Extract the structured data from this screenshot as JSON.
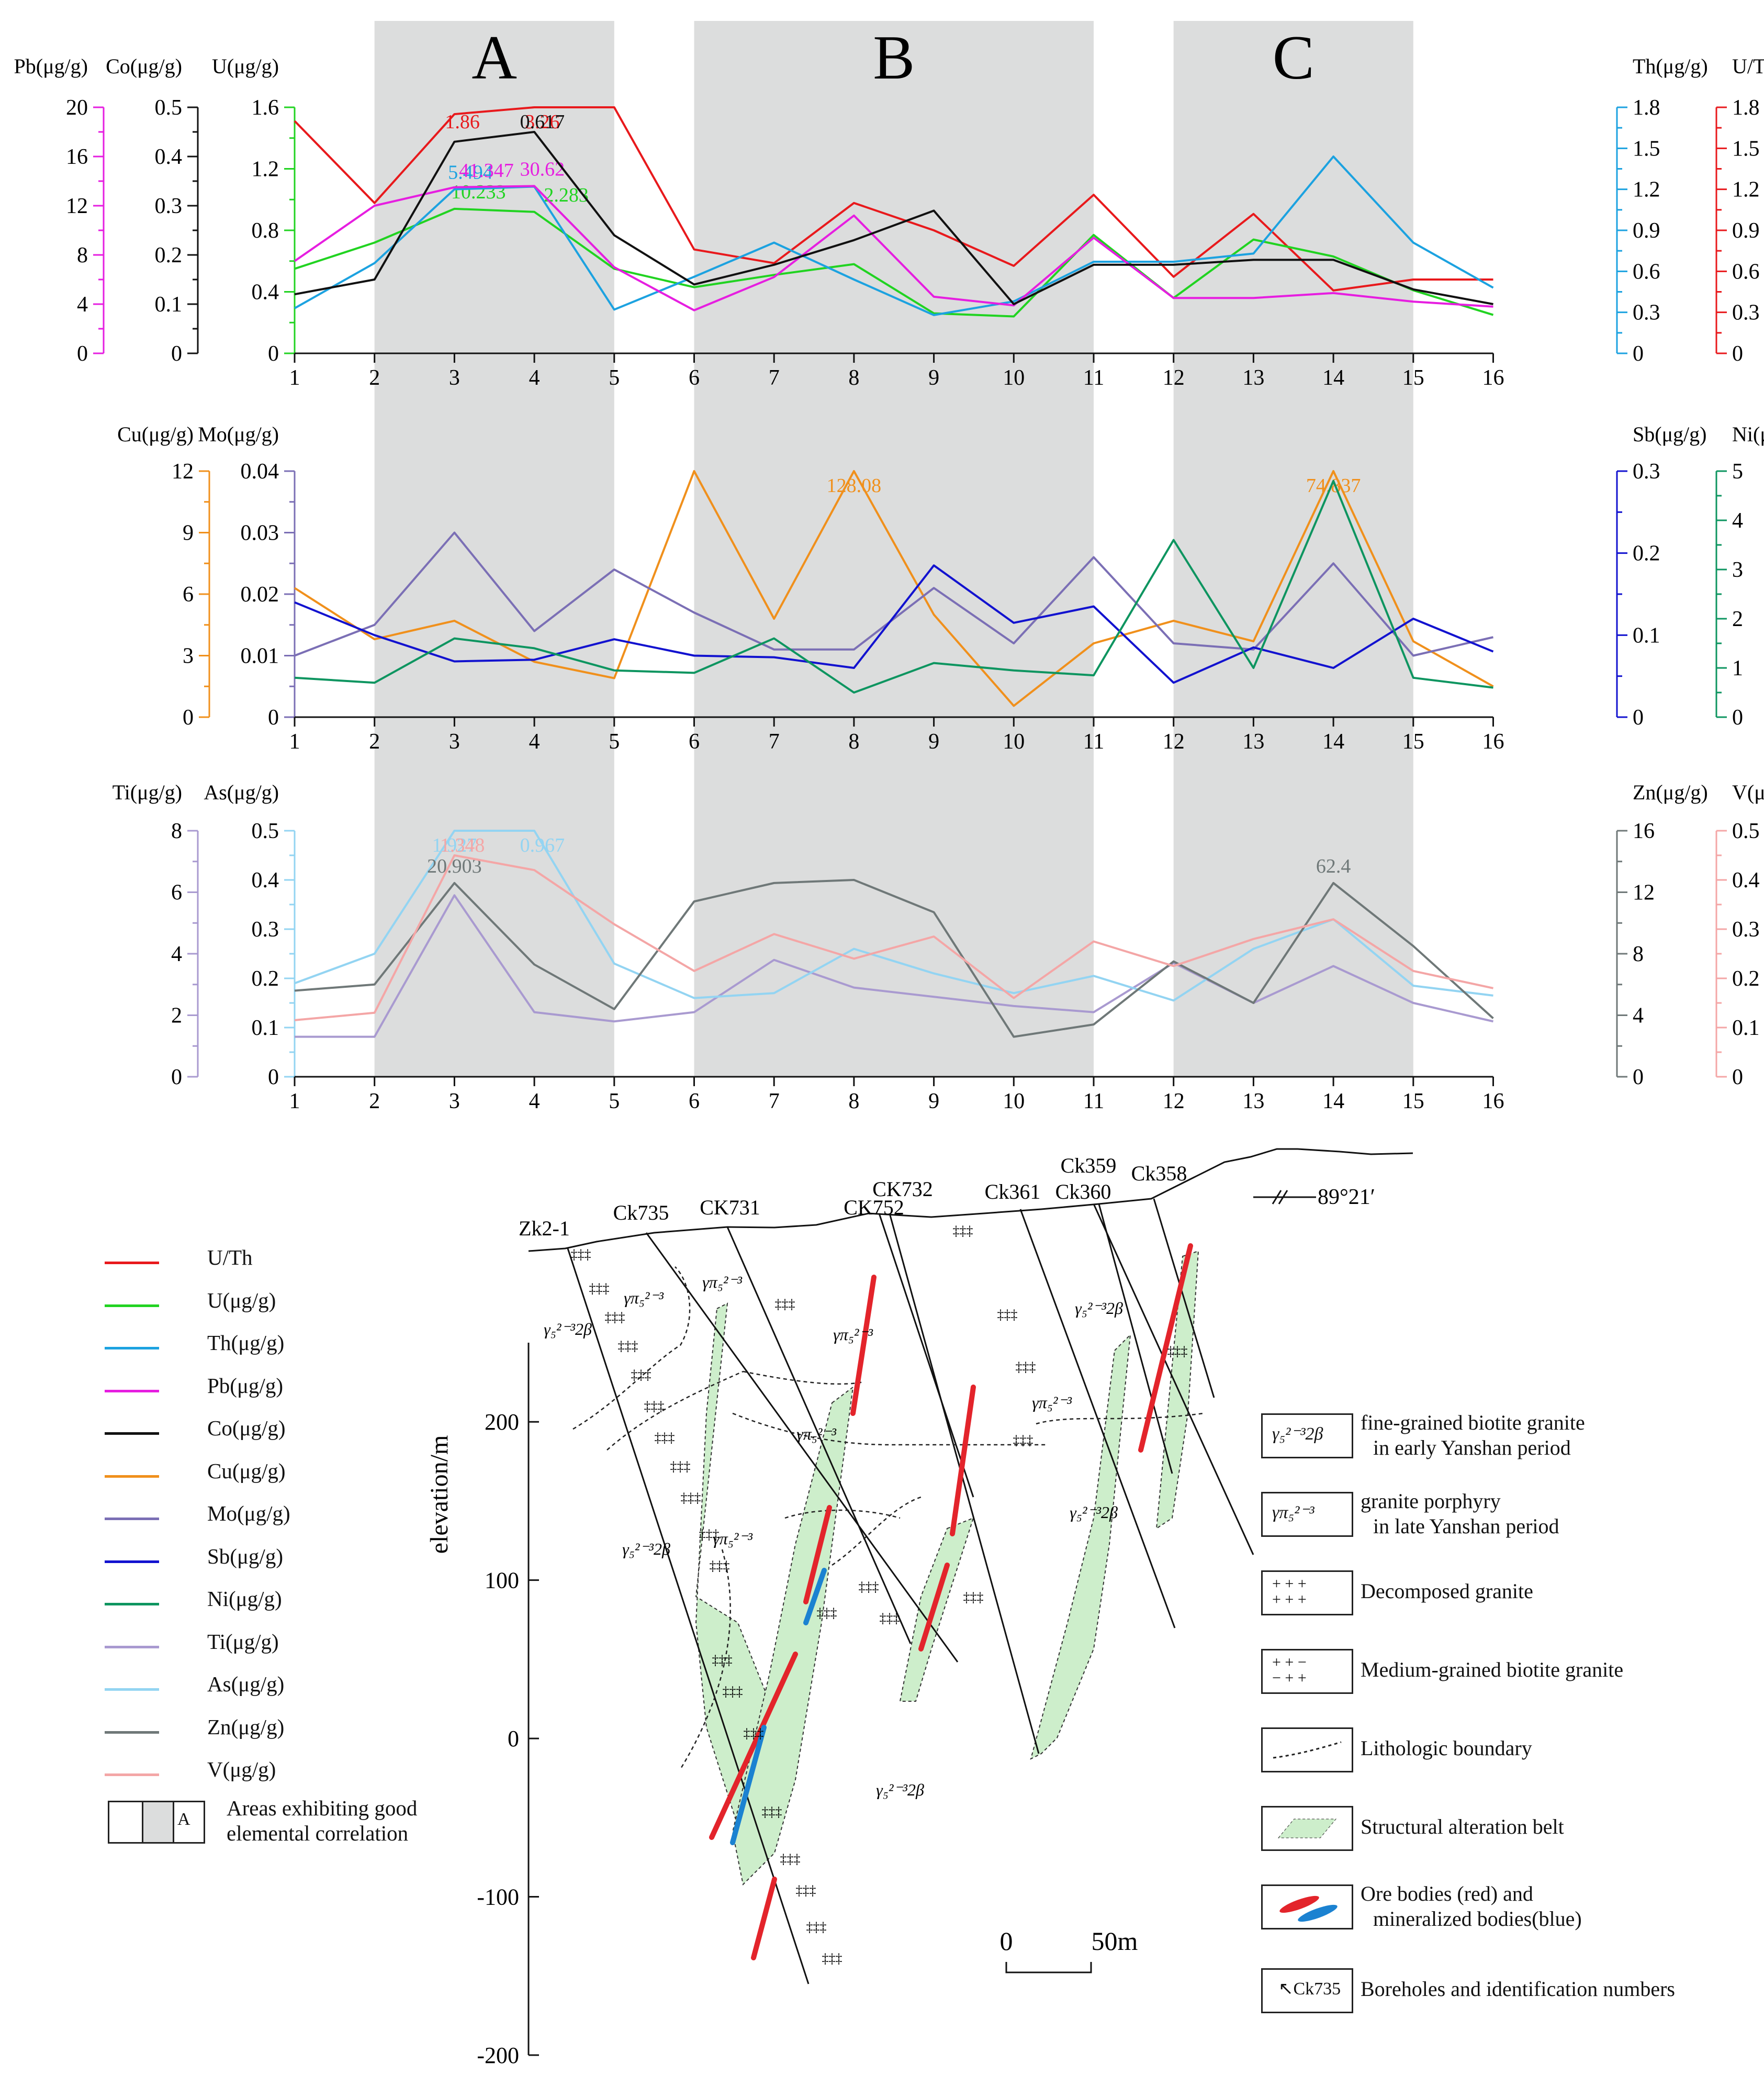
{
  "chart_data": [
    {
      "type": "line",
      "panel": "top",
      "x": [
        1,
        2,
        3,
        4,
        5,
        6,
        7,
        8,
        9,
        10,
        11,
        12,
        13,
        14,
        15,
        16
      ],
      "areas": [
        {
          "label": "A",
          "x_range": [
            2,
            5
          ]
        },
        {
          "label": "B",
          "x_range": [
            6,
            11
          ]
        },
        {
          "label": "C",
          "x_range": [
            12,
            15
          ]
        }
      ],
      "axes": [
        {
          "label": "Pb(μg/g)",
          "side": "left",
          "ticks": [
            0,
            4,
            8,
            12,
            16,
            20
          ],
          "range": [
            0,
            20
          ]
        },
        {
          "label": "Co(μg/g)",
          "side": "left",
          "ticks": [
            0,
            0.1,
            0.2,
            0.3,
            0.4,
            0.5
          ],
          "range": [
            0,
            0.5
          ]
        },
        {
          "label": "U(μg/g)",
          "side": "left",
          "ticks": [
            0,
            0.4,
            0.8,
            1.2,
            1.6
          ],
          "range": [
            0,
            1.6
          ]
        },
        {
          "label": "Th(μg/g)",
          "side": "right",
          "ticks": [
            0,
            0.3,
            0.6,
            0.9,
            1.2,
            1.5,
            1.8
          ],
          "range": [
            0,
            1.8
          ]
        },
        {
          "label": "U/Th",
          "side": "right",
          "ticks": [
            0,
            0.3,
            0.6,
            0.9,
            1.2,
            1.5,
            1.8
          ],
          "range": [
            0,
            1.8
          ]
        }
      ],
      "series": [
        {
          "name": "U/Th",
          "color": "#e8191c",
          "axis": "U/Th",
          "values": [
            1.7,
            1.1,
            1.75,
            1.85,
            1.85,
            0.76,
            0.66,
            1.1,
            0.9,
            0.64,
            1.16,
            0.56,
            1.02,
            0.46,
            0.54,
            0.54
          ],
          "annotations": [
            {
              "text": "1.86",
              "x": 3.1
            },
            {
              "text": "3.26",
              "x": 4.1
            }
          ]
        },
        {
          "name": "U(μg/g)",
          "color": "#21d321",
          "axis": "U(μg/g)",
          "values": [
            0.55,
            0.72,
            0.94,
            0.92,
            0.55,
            0.43,
            0.51,
            0.58,
            0.26,
            0.24,
            0.77,
            0.36,
            0.74,
            0.63,
            0.41,
            0.25
          ],
          "annotations": [
            {
              "text": "10.233",
              "x": 3.3
            },
            {
              "text": "2.283",
              "x": 4.4
            }
          ]
        },
        {
          "name": "Th(μg/g)",
          "color": "#1ca2e0",
          "axis": "Th(μg/g)",
          "values": [
            0.33,
            0.66,
            1.2,
            1.22,
            0.32,
            0.56,
            0.81,
            0.54,
            0.28,
            0.38,
            0.67,
            0.67,
            0.73,
            1.44,
            0.81,
            0.48
          ],
          "annotations": [
            {
              "text": "5.494",
              "x": 3.2
            }
          ]
        },
        {
          "name": "Pb(μg/g)",
          "color": "#e61ee0",
          "axis": "Pb(μg/g)",
          "values": [
            7.5,
            12.0,
            13.5,
            13.6,
            7.0,
            3.5,
            6.2,
            11.2,
            4.6,
            3.9,
            9.4,
            4.5,
            4.5,
            4.9,
            4.2,
            3.8
          ],
          "annotations": [
            {
              "text": "41.347",
              "x": 3.4
            },
            {
              "text": "30.62",
              "x": 4.1
            }
          ]
        },
        {
          "name": "Co(μg/g)",
          "color": "#111111",
          "axis": "Co(μg/g)",
          "values": [
            0.12,
            0.15,
            0.43,
            0.45,
            0.24,
            0.14,
            0.18,
            0.23,
            0.29,
            0.1,
            0.18,
            0.18,
            0.19,
            0.19,
            0.13,
            0.1
          ],
          "annotations": [
            {
              "text": "0.617",
              "x": 4.1
            }
          ]
        }
      ]
    },
    {
      "type": "line",
      "panel": "middle",
      "x": [
        1,
        2,
        3,
        4,
        5,
        6,
        7,
        8,
        9,
        10,
        11,
        12,
        13,
        14,
        15,
        16
      ],
      "axes": [
        {
          "label": "Cu(μg/g)",
          "side": "left",
          "ticks": [
            0,
            3,
            6,
            9,
            12
          ],
          "range": [
            0,
            12
          ]
        },
        {
          "label": "Mo(μg/g)",
          "side": "left",
          "ticks": [
            0,
            0.01,
            0.02,
            0.03,
            0.04
          ],
          "range": [
            0,
            0.04
          ]
        },
        {
          "label": "Sb(μg/g)",
          "side": "right",
          "ticks": [
            0,
            0.1,
            0.2,
            0.3
          ],
          "range": [
            0,
            0.3
          ]
        },
        {
          "label": "Ni(μg/g)",
          "side": "right",
          "ticks": [
            0,
            1,
            2,
            3,
            4,
            5
          ],
          "range": [
            0,
            5
          ]
        }
      ],
      "series": [
        {
          "name": "Cu(μg/g)",
          "color": "#f0901c",
          "axis": "Cu(μg/g)",
          "values": [
            6.3,
            3.8,
            4.7,
            2.7,
            1.9,
            12.0,
            4.8,
            12.0,
            5.0,
            0.55,
            3.6,
            4.7,
            3.7,
            12.0,
            3.7,
            1.5
          ],
          "annotations": [
            {
              "text": "128.08",
              "x": 8.0
            },
            {
              "text": "74.837",
              "x": 14.0
            }
          ]
        },
        {
          "name": "Mo(μg/g)",
          "color": "#7b6fb5",
          "axis": "Mo(μg/g)",
          "values": [
            0.01,
            0.015,
            0.03,
            0.014,
            0.024,
            0.017,
            0.011,
            0.011,
            0.021,
            0.012,
            0.026,
            0.012,
            0.011,
            0.025,
            0.01,
            0.013
          ]
        },
        {
          "name": "Sb(μg/g)",
          "color": "#1212cf",
          "axis": "Sb(μg/g)",
          "values": [
            0.14,
            0.1,
            0.068,
            0.07,
            0.095,
            0.075,
            0.073,
            0.06,
            0.185,
            0.115,
            0.135,
            0.042,
            0.085,
            0.06,
            0.12,
            0.08
          ]
        },
        {
          "name": "Ni(μg/g)",
          "color": "#0e9560",
          "axis": "Ni(μg/g)",
          "values": [
            0.8,
            0.7,
            1.6,
            1.4,
            0.95,
            0.9,
            1.6,
            0.5,
            1.1,
            0.95,
            0.85,
            3.6,
            1.0,
            4.8,
            0.8,
            0.6
          ]
        }
      ]
    },
    {
      "type": "line",
      "panel": "bottom",
      "x": [
        1,
        2,
        3,
        4,
        5,
        6,
        7,
        8,
        9,
        10,
        11,
        12,
        13,
        14,
        15,
        16
      ],
      "axes": [
        {
          "label": "Ti(μg/g)",
          "side": "left",
          "ticks": [
            0,
            2,
            4,
            6,
            8
          ],
          "range": [
            0,
            8
          ]
        },
        {
          "label": "As(μg/g)",
          "side": "left",
          "ticks": [
            0,
            0.1,
            0.2,
            0.3,
            0.4,
            0.5
          ],
          "range": [
            0,
            0.5
          ]
        },
        {
          "label": "Zn(μg/g)",
          "side": "right",
          "ticks": [
            0,
            4,
            8,
            12,
            16
          ],
          "range": [
            0,
            16
          ]
        },
        {
          "label": "V(μg/g)",
          "side": "right",
          "ticks": [
            0,
            0.1,
            0.2,
            0.3,
            0.4,
            0.5
          ],
          "range": [
            0,
            0.5
          ]
        }
      ],
      "series": [
        {
          "name": "Ti(μg/g)",
          "color": "#a99ad0",
          "axis": "Ti(μg/g)",
          "values": [
            1.3,
            1.3,
            5.9,
            2.1,
            1.8,
            2.1,
            3.8,
            2.9,
            2.6,
            2.3,
            2.1,
            3.7,
            2.4,
            3.6,
            2.4,
            1.8
          ]
        },
        {
          "name": "As(μg/g)",
          "color": "#93d4f2",
          "axis": "As(μg/g)",
          "values": [
            0.19,
            0.25,
            0.5,
            0.5,
            0.23,
            0.16,
            0.17,
            0.26,
            0.21,
            0.17,
            0.205,
            0.155,
            0.26,
            0.32,
            0.185,
            0.165
          ],
          "annotations": [
            {
              "text": "1.927",
              "x": 3.0
            },
            {
              "text": "0.967",
              "x": 4.1
            }
          ]
        },
        {
          "name": "Zn(μg/g)",
          "color": "#6f7878",
          "axis": "Zn(μg/g)",
          "values": [
            5.6,
            6.0,
            12.6,
            7.3,
            4.4,
            11.4,
            12.6,
            12.8,
            10.7,
            2.6,
            3.4,
            7.5,
            4.8,
            12.6,
            8.5,
            3.8
          ],
          "annotations": [
            {
              "text": "20.903",
              "x": 3.0
            },
            {
              "text": "62.4",
              "x": 14.0
            }
          ]
        },
        {
          "name": "V(μg/g)",
          "color": "#f4a6a6",
          "axis": "V(μg/g)",
          "values": [
            0.115,
            0.13,
            0.45,
            0.42,
            0.31,
            0.215,
            0.29,
            0.24,
            0.285,
            0.16,
            0.275,
            0.225,
            0.28,
            0.32,
            0.215,
            0.18
          ],
          "annotations": [
            {
              "text": "1.348",
              "x": 3.1
            }
          ]
        }
      ]
    },
    {
      "type": "diagram",
      "panel": "cross-section",
      "ylabel": "elevation/m",
      "yticks": [
        "200",
        "100",
        "0",
        "-100",
        "-200"
      ],
      "yrange": [
        -200,
        250
      ],
      "boreholes": [
        "Zk2-1",
        "Ck735",
        "CK731",
        "CK752",
        "CK732",
        "Ck361",
        "Ck360",
        "Ck359",
        "Ck358"
      ],
      "orientation": "89°21′",
      "scale_bar": {
        "start": "0",
        "end": "50m"
      },
      "rock_labels": [
        "γ₅²⁻³2β",
        "γπ₅²⁻³",
        "γπ₅²⁻³",
        "γ₅²⁻³2β",
        "γ₅²⁻³2β",
        "γπ₅²⁻³",
        "γπ₅²⁻³",
        "γ₅²⁻³2β",
        "γπ₅²⁻³",
        "γ₅²⁻³2β",
        "γπ₅²⁻³",
        "γ₅²⁻³2β",
        "γ₅²⁻³2β"
      ]
    }
  ],
  "legend": {
    "series": [
      {
        "label": "U/Th",
        "color": "#e8191c"
      },
      {
        "label": "U(μg/g)",
        "color": "#21d321"
      },
      {
        "label": "Th(μg/g)",
        "color": "#1ca2e0"
      },
      {
        "label": "Pb(μg/g)",
        "color": "#e61ee0"
      },
      {
        "label": "Co(μg/g)",
        "color": "#111111"
      },
      {
        "label": "Cu(μg/g)",
        "color": "#f0901c"
      },
      {
        "label": "Mo(μg/g)",
        "color": "#7b6fb5"
      },
      {
        "label": "Sb(μg/g)",
        "color": "#1212cf"
      },
      {
        "label": "Ni(μg/g)",
        "color": "#0e9560"
      },
      {
        "label": "Ti(μg/g)",
        "color": "#a99ad0"
      },
      {
        "label": "As(μg/g)",
        "color": "#93d4f2"
      },
      {
        "label": "Zn(μg/g)",
        "color": "#6f7878"
      },
      {
        "label": "V(μg/g)",
        "color": "#f4a6a6"
      }
    ],
    "area_letter": "A",
    "area_text_1": "Areas exhibiting good",
    "area_text_2": "elemental correlation"
  },
  "geo_legend": [
    {
      "symbol": "γ₅²⁻³2β",
      "text_1": "fine-grained biotite granite",
      "text_2": "in early Yanshan period"
    },
    {
      "symbol": "γπ₅²⁻³",
      "text_1": "granite porphyry",
      "text_2": "in late Yanshan period"
    },
    {
      "symbol": "",
      "text_1": "Decomposed granite",
      "text_2": ""
    },
    {
      "symbol": "",
      "text_1": "Medium-grained biotite granite",
      "text_2": ""
    },
    {
      "symbol": "",
      "text_1": "Lithologic boundary",
      "text_2": ""
    },
    {
      "symbol": "",
      "text_1": "Structural alteration belt",
      "text_2": ""
    },
    {
      "symbol": "",
      "text_1": "Ore bodies (red) and",
      "text_2": "mineralized bodies(blue)"
    },
    {
      "symbol": "Ck735",
      "text_1": "Boreholes and identification numbers",
      "text_2": ""
    }
  ],
  "colors": {
    "area_fill": "#dcdddd",
    "belt_fill": "#cdeecb",
    "ore": "#e3242b",
    "mineralized": "#1b82d1"
  }
}
